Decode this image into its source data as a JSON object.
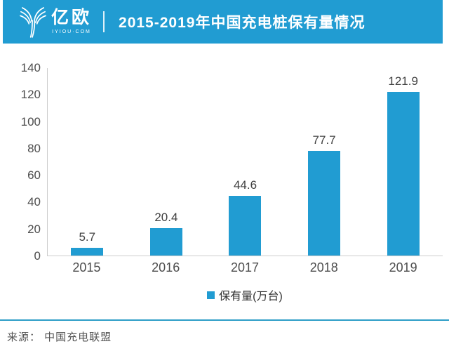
{
  "header": {
    "logo": {
      "name": "亿欧",
      "subtext": "IYIOU·COM"
    },
    "title": "2015-2019年中国充电桩保有量情况"
  },
  "chart_data": {
    "type": "bar",
    "categories": [
      "2015",
      "2016",
      "2017",
      "2018",
      "2019"
    ],
    "values": [
      5.7,
      20.4,
      44.6,
      77.7,
      121.9
    ],
    "data_labels": [
      "5.7",
      "20.4",
      "44.6",
      "77.7",
      "121.9"
    ],
    "series_name": "保有量(万台)",
    "title": "2015-2019年中国充电桩保有量情况",
    "xlabel": "",
    "ylabel": "",
    "ylim": [
      0,
      140
    ],
    "yticks": [
      0,
      20,
      40,
      60,
      80,
      100,
      120,
      140
    ],
    "grid": false,
    "legend_position": "bottom",
    "bar_color": "#219CD2"
  },
  "footer": {
    "source": "来源： 中国充电联盟"
  },
  "colors": {
    "banner_blue": "#219CD2",
    "bar_blue": "#219CD2",
    "divider_blue": "#2E9EC7",
    "axis_gray": "#cccccc",
    "text_gray": "#4d4d4d"
  }
}
